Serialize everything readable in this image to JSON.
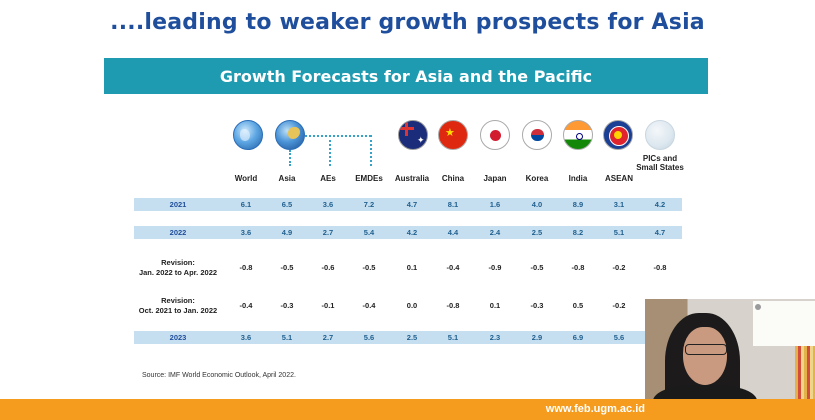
{
  "slide": {
    "headline": "....leading to weaker growth prospects for Asia",
    "banner": "Growth Forecasts for Asia and the Pacific",
    "source": "Source: IMF World Economic Outlook, April 2022."
  },
  "table": {
    "columns": [
      {
        "label": "World",
        "icon": "globe-icon"
      },
      {
        "label": "Asia",
        "icon": "globe-asia-icon"
      },
      {
        "label": "AEs",
        "icon": ""
      },
      {
        "label": "EMDEs",
        "icon": ""
      },
      {
        "label": "Australia",
        "icon": "flag-australia-icon"
      },
      {
        "label": "China",
        "icon": "flag-china-icon"
      },
      {
        "label": "Japan",
        "icon": "flag-japan-icon"
      },
      {
        "label": "Korea",
        "icon": "flag-korea-icon"
      },
      {
        "label": "India",
        "icon": "flag-india-icon"
      },
      {
        "label": "ASEAN",
        "icon": "flag-asean-icon"
      },
      {
        "label": "PICs and Small States",
        "icon": "globe-pics-icon"
      }
    ],
    "rows": [
      {
        "label": "2021",
        "highlight": true,
        "values": [
          "6.1",
          "6.5",
          "3.6",
          "7.2",
          "4.7",
          "8.1",
          "1.6",
          "4.0",
          "8.9",
          "3.1",
          "4.2"
        ]
      },
      {
        "label": "2022",
        "highlight": true,
        "values": [
          "3.6",
          "4.9",
          "2.7",
          "5.4",
          "4.2",
          "4.4",
          "2.4",
          "2.5",
          "8.2",
          "5.1",
          "4.7"
        ]
      },
      {
        "label_lines": [
          "Revision:",
          "Jan. 2022 to Apr. 2022"
        ],
        "highlight": false,
        "values": [
          "-0.8",
          "-0.5",
          "-0.6",
          "-0.5",
          "0.1",
          "-0.4",
          "-0.9",
          "-0.5",
          "-0.8",
          "-0.2",
          "-0.8"
        ]
      },
      {
        "label_lines": [
          "Revision:",
          "Oct. 2021 to Jan. 2022"
        ],
        "highlight": false,
        "values": [
          "-0.4",
          "-0.3",
          "-0.1",
          "-0.4",
          "0.0",
          "-0.8",
          "0.1",
          "-0.3",
          "0.5",
          "-0.2",
          ""
        ]
      },
      {
        "label": "2023",
        "highlight": true,
        "values": [
          "3.6",
          "5.1",
          "2.7",
          "5.6",
          "2.5",
          "5.1",
          "2.3",
          "2.9",
          "6.9",
          "5.6",
          ""
        ]
      }
    ]
  },
  "colors": {
    "headline": "#1f4e9c",
    "banner": "#1e9bb0",
    "row_highlight": "#c6dff0",
    "value_blue": "#1f5f8e",
    "bottom_bar": "#f59b1e"
  },
  "footer": {
    "url": "www.feb.ugm.ac.id"
  }
}
